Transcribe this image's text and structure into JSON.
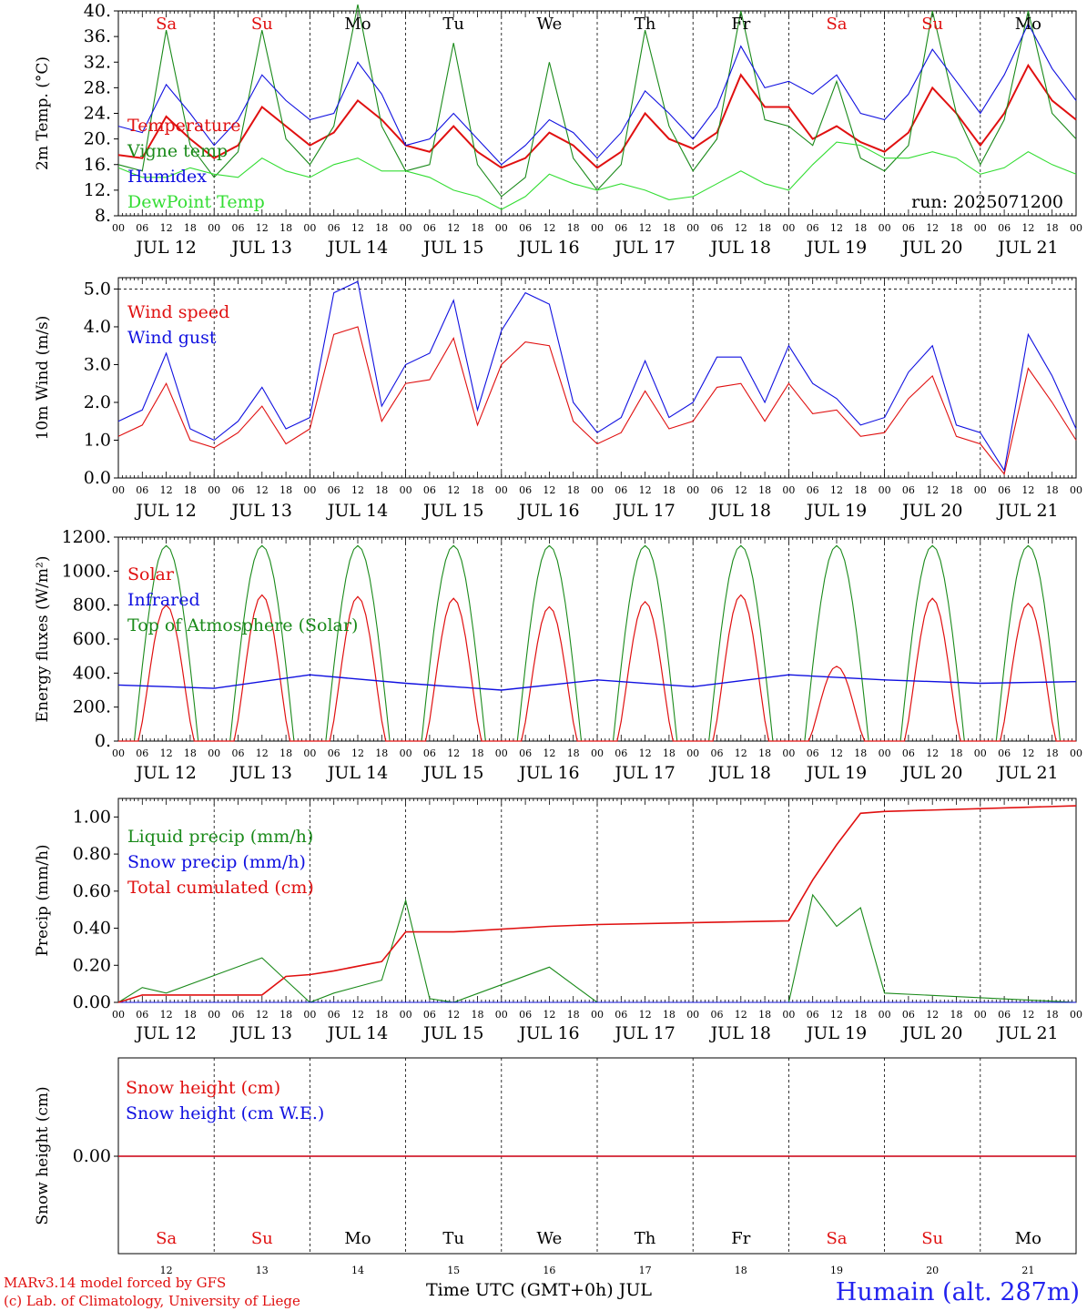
{
  "colors": {
    "red": "#e01010",
    "green": "#1a8a1a",
    "blue": "#1010e0",
    "lightgreen": "#33dd33"
  },
  "days": {
    "weekdays": [
      "Sa",
      "Su",
      "Mo",
      "Tu",
      "We",
      "Th",
      "Fr",
      "Sa",
      "Su",
      "Mo"
    ],
    "weekend_flags": [
      true,
      true,
      false,
      false,
      false,
      false,
      false,
      true,
      true,
      false
    ],
    "date_labels": [
      "JUL 12",
      "JUL 13",
      "JUL 14",
      "JUL 15",
      "JUL 16",
      "JUL 17",
      "JUL 18",
      "JUL 19",
      "JUL 20",
      "JUL 21"
    ],
    "day_numbers": [
      "12",
      "13",
      "14",
      "15",
      "16",
      "17",
      "18",
      "19",
      "20",
      "21"
    ],
    "hour_ticks": [
      "00",
      "06",
      "12",
      "18"
    ],
    "final_tick": "00"
  },
  "footer": {
    "model_line": "MARv3.14 model forced by GFS",
    "credit_line": "(c) Lab. of Climatology, University of Liege",
    "time_axis": "Time UTC (GMT+0h) JUL",
    "station": "Humain (alt. 287m)"
  },
  "chart_data": [
    {
      "type": "line",
      "ylabel": "2m Temp. (°C)",
      "ylim": [
        8,
        40
      ],
      "yticks": [
        "8.",
        "12.",
        "16.",
        "20.",
        "24.",
        "28.",
        "32.",
        "36.",
        "40."
      ],
      "run_label": "run: 2025071200",
      "x_days": [
        0,
        0.25,
        0.5,
        0.75,
        1,
        1.25,
        1.5,
        1.75,
        2,
        2.25,
        2.5,
        2.75,
        3,
        3.25,
        3.5,
        3.75,
        4,
        4.25,
        4.5,
        4.75,
        5,
        5.25,
        5.5,
        5.75,
        6,
        6.25,
        6.5,
        6.75,
        7,
        7.25,
        7.5,
        7.75,
        8,
        8.25,
        8.5,
        8.75,
        9,
        9.25,
        9.5,
        9.75,
        10
      ],
      "series": [
        {
          "name": "Temperature",
          "color": "red",
          "values": [
            17.5,
            17,
            23.5,
            20,
            17,
            19,
            25,
            22,
            19,
            21,
            26,
            23,
            19,
            18,
            22,
            18,
            15.5,
            17,
            21,
            19,
            15.5,
            18,
            24,
            20,
            18.5,
            21,
            30,
            25,
            25,
            20,
            22,
            19.5,
            18,
            21,
            28,
            24,
            19,
            24,
            31.5,
            26,
            23
          ]
        },
        {
          "name": "Vigne temp",
          "color": "green",
          "values": [
            16,
            15,
            37,
            19,
            14,
            18,
            37,
            20,
            16,
            22,
            41,
            22,
            15,
            16,
            35,
            16,
            11,
            14,
            32,
            17,
            12,
            16,
            37,
            22,
            15,
            20,
            40,
            23,
            22,
            19,
            29,
            17,
            15,
            19,
            40,
            24,
            16,
            23,
            40,
            24,
            20
          ]
        },
        {
          "name": "Humidex",
          "color": "blue",
          "values": [
            22,
            21,
            28.5,
            24,
            19,
            23,
            30,
            26,
            23,
            24,
            32,
            27,
            19,
            20,
            24,
            20,
            16,
            19,
            23,
            21,
            17,
            21,
            27.5,
            24,
            20,
            25,
            34.5,
            28,
            29,
            27,
            30,
            24,
            23,
            27,
            34,
            29,
            24,
            30,
            38,
            31,
            26
          ]
        },
        {
          "name": "DewPoint Temp",
          "color": "lightgreen",
          "values": [
            15.5,
            14,
            14,
            15.5,
            14.5,
            14,
            17,
            15,
            14,
            16,
            17,
            15,
            15,
            14,
            12,
            11,
            9,
            11,
            14.5,
            13,
            12,
            13,
            12,
            10.5,
            11,
            13,
            15,
            13,
            12,
            16,
            19.5,
            19,
            17,
            17,
            18,
            17,
            14.5,
            15.5,
            18,
            16,
            14.5
          ]
        }
      ]
    },
    {
      "type": "line",
      "ylabel": "10m Wind (m/s)",
      "ylim": [
        0,
        5.3
      ],
      "yticks": [
        "0.0",
        "1.0",
        "2.0",
        "3.0",
        "4.0",
        "5.0"
      ],
      "reference_line": 5.0,
      "x_days": [
        0,
        0.25,
        0.5,
        0.75,
        1,
        1.25,
        1.5,
        1.75,
        2,
        2.25,
        2.5,
        2.75,
        3,
        3.25,
        3.5,
        3.75,
        4,
        4.25,
        4.5,
        4.75,
        5,
        5.25,
        5.5,
        5.75,
        6,
        6.25,
        6.5,
        6.75,
        7,
        7.25,
        7.5,
        7.75,
        8,
        8.25,
        8.5,
        8.75,
        9,
        9.25,
        9.5,
        9.75,
        10
      ],
      "series": [
        {
          "name": "Wind speed",
          "color": "red",
          "values": [
            1.1,
            1.4,
            2.5,
            1.0,
            0.8,
            1.2,
            1.9,
            0.9,
            1.3,
            3.8,
            4.0,
            1.5,
            2.5,
            2.6,
            3.7,
            1.4,
            3.0,
            3.6,
            3.5,
            1.5,
            0.9,
            1.2,
            2.3,
            1.3,
            1.5,
            2.4,
            2.5,
            1.5,
            2.5,
            1.7,
            1.8,
            1.1,
            1.2,
            2.1,
            2.7,
            1.1,
            0.9,
            0.1,
            2.9,
            2.0,
            1.0
          ]
        },
        {
          "name": "Wind gust",
          "color": "blue",
          "values": [
            1.5,
            1.8,
            3.3,
            1.3,
            1.0,
            1.5,
            2.4,
            1.3,
            1.6,
            4.9,
            5.2,
            1.9,
            3.0,
            3.3,
            4.7,
            1.8,
            3.9,
            4.9,
            4.6,
            2.0,
            1.2,
            1.6,
            3.1,
            1.6,
            2.0,
            3.2,
            3.2,
            2.0,
            3.5,
            2.5,
            2.1,
            1.4,
            1.6,
            2.8,
            3.5,
            1.4,
            1.2,
            0.2,
            3.8,
            2.7,
            1.3
          ]
        }
      ]
    },
    {
      "type": "line",
      "ylabel": "Energy fluxes (W/m²)",
      "ylim": [
        0,
        1200
      ],
      "yticks": [
        "0.",
        "200.",
        "400.",
        "600.",
        "800.",
        "1000.",
        "1200."
      ],
      "series": [
        {
          "name": "Solar",
          "color": "red",
          "daily_peaks": [
            800,
            860,
            850,
            840,
            790,
            820,
            860,
            440,
            840,
            810
          ]
        },
        {
          "name": "Infrared",
          "color": "blue",
          "values": [
            330,
            310,
            390,
            340,
            300,
            360,
            320,
            390,
            360,
            340,
            350
          ]
        },
        {
          "name": "Top of Atmosphere (Solar)",
          "color": "green",
          "daily_peak": 1150
        }
      ]
    },
    {
      "type": "line",
      "ylabel": "Precip (mm/h)",
      "ylim": [
        0,
        1.1
      ],
      "yticks": [
        "0.00",
        "0.20",
        "0.40",
        "0.60",
        "0.80",
        "1.00"
      ],
      "x_days": [
        0,
        0.25,
        0.5,
        1.5,
        1.75,
        2,
        2.25,
        2.75,
        3,
        3.25,
        3.5,
        4.5,
        5,
        7,
        7.25,
        7.5,
        7.75,
        8,
        10
      ],
      "series": [
        {
          "name": "Liquid precip (mm/h)",
          "color": "green",
          "values": [
            0,
            0.08,
            0.05,
            0.24,
            0.12,
            0.0,
            0.05,
            0.12,
            0.55,
            0.02,
            0.0,
            0.19,
            0.0,
            0.0,
            0.58,
            0.41,
            0.51,
            0.05,
            0.0
          ]
        },
        {
          "name": "Snow precip (mm/h)",
          "color": "blue",
          "values": [
            0,
            0,
            0,
            0,
            0,
            0,
            0,
            0,
            0,
            0,
            0,
            0,
            0,
            0,
            0,
            0,
            0,
            0,
            0
          ]
        },
        {
          "name": "Total cumulated (cm)",
          "color": "red",
          "values": [
            0,
            0.04,
            0.04,
            0.04,
            0.14,
            0.15,
            0.17,
            0.22,
            0.38,
            0.38,
            0.38,
            0.41,
            0.42,
            0.44,
            0.66,
            0.85,
            1.02,
            1.03,
            1.06
          ]
        }
      ]
    },
    {
      "type": "line",
      "ylabel": "Snow height (cm)",
      "yticks": [
        "0.00"
      ],
      "series": [
        {
          "name": "Snow height (cm)",
          "color": "red",
          "values": [
            0,
            0
          ]
        },
        {
          "name": "Snow height (cm W.E.)",
          "color": "blue",
          "values": [
            0,
            0
          ]
        }
      ]
    }
  ]
}
